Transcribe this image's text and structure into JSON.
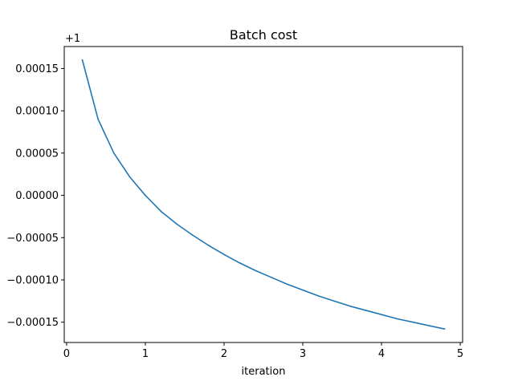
{
  "chart_data": {
    "type": "line",
    "title": "Batch cost",
    "xlabel": "iteration",
    "ylabel": "",
    "offset_text": "+1",
    "xlim": [
      -0.03,
      5.03
    ],
    "ylim": [
      -0.000174,
      0.000176
    ],
    "xticks": [
      0,
      1,
      2,
      3,
      4,
      5
    ],
    "xtick_labels": [
      "0",
      "1",
      "2",
      "3",
      "4",
      "5"
    ],
    "yticks": [
      0.00015,
      0.0001,
      5e-05,
      0.0,
      -5e-05,
      -0.0001,
      -0.00015
    ],
    "ytick_labels": [
      "0.00015",
      "0.00010",
      "0.00005",
      "0.00000",
      "−0.00005",
      "−0.00010",
      "−0.00015"
    ],
    "grid": false,
    "series": [
      {
        "color": "#1f77b4",
        "x": [
          0.2,
          0.4,
          0.6,
          0.8,
          1.0,
          1.2,
          1.4,
          1.6,
          1.8,
          2.0,
          2.2,
          2.4,
          2.6,
          2.8,
          3.0,
          3.2,
          3.4,
          3.6,
          3.8,
          4.0,
          4.2,
          4.4,
          4.6,
          4.8
        ],
        "y": [
          0.00016,
          9e-05,
          5e-05,
          2.2e-05,
          0.0,
          -1.9e-05,
          -3.4e-05,
          -4.7e-05,
          -5.9e-05,
          -7e-05,
          -8e-05,
          -8.9e-05,
          -9.7e-05,
          -0.000105,
          -0.000112,
          -0.000119,
          -0.000125,
          -0.000131,
          -0.000136,
          -0.000141,
          -0.000146,
          -0.00015,
          -0.000154,
          -0.000158
        ]
      }
    ]
  }
}
